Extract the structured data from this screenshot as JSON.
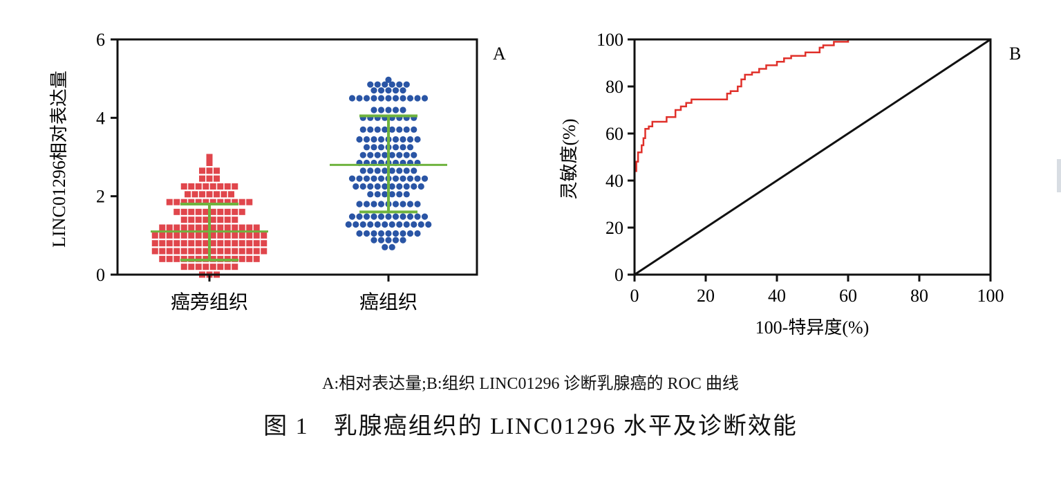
{
  "chart_data": [
    {
      "type": "scatter",
      "panel_label": "A",
      "ylabel": "LINC01296相对表达量",
      "xlabel": "",
      "ylim": [
        0,
        6
      ],
      "yticks": [
        0,
        2,
        4,
        6
      ],
      "categories": [
        "癌旁组织",
        "癌组织"
      ],
      "grid": false,
      "series": [
        {
          "category": "癌旁组织",
          "color": "#e0464c",
          "marker": "square",
          "mean": 1.1,
          "sd_low": 0.37,
          "sd_high": 1.8,
          "values": [
            0.0,
            0.0,
            0.0,
            0.2,
            0.2,
            0.2,
            0.2,
            0.2,
            0.2,
            0.2,
            0.2,
            0.4,
            0.4,
            0.4,
            0.4,
            0.4,
            0.4,
            0.4,
            0.4,
            0.4,
            0.4,
            0.4,
            0.4,
            0.4,
            0.4,
            0.6,
            0.6,
            0.6,
            0.6,
            0.6,
            0.6,
            0.6,
            0.6,
            0.6,
            0.6,
            0.6,
            0.6,
            0.6,
            0.6,
            0.6,
            0.6,
            0.8,
            0.8,
            0.8,
            0.8,
            0.8,
            0.8,
            0.8,
            0.8,
            0.8,
            0.8,
            0.8,
            0.8,
            0.8,
            0.8,
            0.8,
            0.8,
            1.0,
            1.0,
            1.0,
            1.0,
            1.0,
            1.0,
            1.0,
            1.0,
            1.0,
            1.0,
            1.0,
            1.0,
            1.0,
            1.0,
            1.0,
            1.0,
            1.2,
            1.2,
            1.2,
            1.2,
            1.2,
            1.2,
            1.2,
            1.2,
            1.2,
            1.2,
            1.2,
            1.2,
            1.2,
            1.2,
            1.4,
            1.4,
            1.4,
            1.4,
            1.4,
            1.4,
            1.4,
            1.4,
            1.6,
            1.6,
            1.6,
            1.6,
            1.6,
            1.6,
            1.6,
            1.6,
            1.6,
            1.6,
            1.85,
            1.85,
            1.85,
            1.85,
            1.85,
            1.85,
            1.85,
            1.85,
            1.85,
            1.85,
            1.85,
            1.85,
            2.05,
            2.05,
            2.05,
            2.05,
            2.05,
            2.05,
            2.05,
            2.25,
            2.25,
            2.25,
            2.25,
            2.25,
            2.25,
            2.25,
            2.25,
            2.45,
            2.45,
            2.45,
            2.65,
            2.65,
            2.65,
            2.85,
            3.0
          ]
        },
        {
          "category": "癌组织",
          "color": "#2a55a5",
          "marker": "circle",
          "mean": 2.8,
          "sd_low": 1.6,
          "sd_high": 4.05,
          "values": [
            0.7,
            0.7,
            0.88,
            0.88,
            0.88,
            0.88,
            0.88,
            1.05,
            1.05,
            1.05,
            1.05,
            1.05,
            1.05,
            1.05,
            1.05,
            1.05,
            1.28,
            1.28,
            1.28,
            1.28,
            1.28,
            1.28,
            1.28,
            1.28,
            1.28,
            1.28,
            1.28,
            1.28,
            1.48,
            1.48,
            1.48,
            1.48,
            1.48,
            1.48,
            1.48,
            1.48,
            1.48,
            1.48,
            1.48,
            1.8,
            1.8,
            1.8,
            1.8,
            1.8,
            1.8,
            1.8,
            1.8,
            1.8,
            2.05,
            2.05,
            2.05,
            2.05,
            2.05,
            2.05,
            2.25,
            2.25,
            2.25,
            2.25,
            2.25,
            2.25,
            2.25,
            2.25,
            2.25,
            2.25,
            2.45,
            2.45,
            2.45,
            2.45,
            2.45,
            2.45,
            2.45,
            2.45,
            2.45,
            2.45,
            2.45,
            2.65,
            2.65,
            2.65,
            2.65,
            2.65,
            2.65,
            2.65,
            2.65,
            2.85,
            2.85,
            2.85,
            2.85,
            2.85,
            2.85,
            2.85,
            2.85,
            2.85,
            3.05,
            3.05,
            3.05,
            3.05,
            3.05,
            3.05,
            3.05,
            3.05,
            3.25,
            3.25,
            3.25,
            3.25,
            3.25,
            3.25,
            3.25,
            3.45,
            3.45,
            3.45,
            3.45,
            3.45,
            3.45,
            3.45,
            3.45,
            3.45,
            3.7,
            3.7,
            3.7,
            3.7,
            3.7,
            3.7,
            3.7,
            3.7,
            4.0,
            4.0,
            4.0,
            4.0,
            4.0,
            4.0,
            4.0,
            4.0,
            4.2,
            4.2,
            4.2,
            4.2,
            4.2,
            4.5,
            4.5,
            4.5,
            4.5,
            4.5,
            4.5,
            4.5,
            4.5,
            4.5,
            4.5,
            4.5,
            4.7,
            4.7,
            4.7,
            4.7,
            4.7,
            4.85,
            4.85,
            4.85,
            4.85,
            4.85,
            4.85,
            4.97
          ]
        }
      ]
    },
    {
      "type": "line",
      "panel_label": "B",
      "xlabel": "100-特异度(%)",
      "ylabel": "灵敏度(%)",
      "xlim": [
        0,
        100
      ],
      "ylim": [
        0,
        100
      ],
      "xticks": [
        0,
        20,
        40,
        60,
        80,
        100
      ],
      "yticks": [
        0,
        20,
        40,
        60,
        80,
        100
      ],
      "grid": false,
      "series": [
        {
          "color": "#e0302a",
          "points": [
            [
              0,
              0
            ],
            [
              0,
              44
            ],
            [
              0.5,
              44
            ],
            [
              0.5,
              48
            ],
            [
              1,
              48
            ],
            [
              1,
              52
            ],
            [
              2,
              52
            ],
            [
              2,
              55
            ],
            [
              2.5,
              55
            ],
            [
              2.5,
              58
            ],
            [
              3,
              58
            ],
            [
              3,
              62
            ],
            [
              4,
              62
            ],
            [
              4,
              63
            ],
            [
              5,
              63
            ],
            [
              5,
              65
            ],
            [
              9,
              65
            ],
            [
              9,
              67
            ],
            [
              11.5,
              67
            ],
            [
              11.5,
              70
            ],
            [
              13,
              70
            ],
            [
              13,
              71.5
            ],
            [
              14.5,
              71.5
            ],
            [
              14.5,
              73
            ],
            [
              16,
              73
            ],
            [
              16,
              74.5
            ],
            [
              26,
              74.5
            ],
            [
              26,
              77
            ],
            [
              27,
              77
            ],
            [
              27,
              78
            ],
            [
              29,
              78
            ],
            [
              29,
              80
            ],
            [
              30,
              80
            ],
            [
              30,
              83
            ],
            [
              31,
              83
            ],
            [
              31,
              85
            ],
            [
              33,
              85
            ],
            [
              33,
              86
            ],
            [
              35,
              86
            ],
            [
              35,
              87.5
            ],
            [
              37,
              87.5
            ],
            [
              37,
              89
            ],
            [
              40,
              89
            ],
            [
              40,
              90.5
            ],
            [
              42,
              90.5
            ],
            [
              42,
              92
            ],
            [
              44,
              92
            ],
            [
              44,
              93
            ],
            [
              48,
              93
            ],
            [
              48,
              94.5
            ],
            [
              52,
              94.5
            ],
            [
              52,
              96.5
            ],
            [
              53,
              96.5
            ],
            [
              53,
              97.5
            ],
            [
              56,
              97.5
            ],
            [
              56,
              99
            ],
            [
              60,
              99
            ],
            [
              60,
              100
            ],
            [
              100,
              100
            ]
          ]
        },
        {
          "color": "#111111",
          "points": [
            [
              0,
              0
            ],
            [
              100,
              100
            ]
          ]
        }
      ]
    }
  ],
  "caption": {
    "subtitle": "A:相对表达量;B:组织 LINC01296 诊断乳腺癌的 ROC 曲线",
    "title": "图 1　乳腺癌组织的 LINC01296 水平及诊断效能"
  }
}
